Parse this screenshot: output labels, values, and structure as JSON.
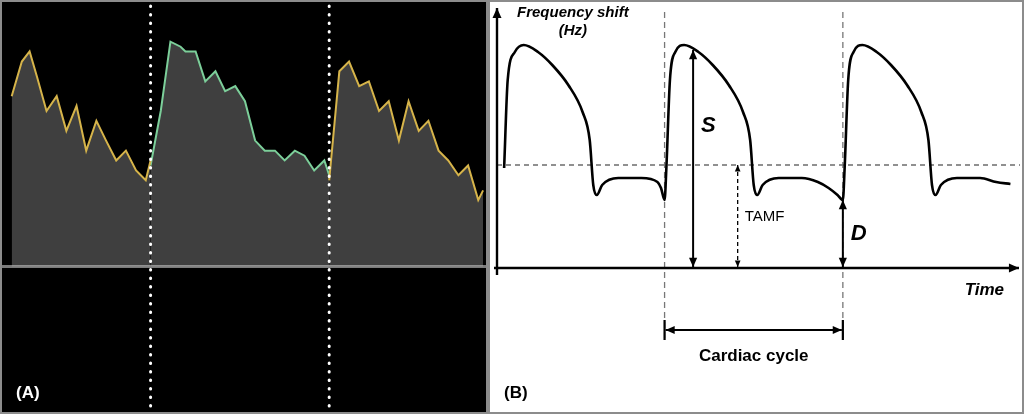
{
  "chart_data": [
    {
      "type": "line",
      "panel_label": "(A)",
      "x": [
        2,
        4.1,
        5.7,
        7.2,
        9.2,
        11.3,
        13.3,
        15.4,
        17.4,
        19.5,
        21.5,
        23.6,
        25.6,
        27.7,
        29.7,
        30.7,
        32.8,
        34.8,
        36.9,
        37.9,
        40,
        42,
        44.1,
        46.1,
        48.2,
        50.2,
        52.3,
        54.3,
        56.4,
        58.4,
        60.5,
        62.5,
        64.5,
        66.6,
        67.6,
        69.7,
        71.7,
        73.8,
        75.8,
        77.9,
        79.9,
        82,
        84,
        86.1,
        88.1,
        90.2,
        92.2,
        94.3,
        96.3,
        98.4,
        99.4
      ],
      "series": [
        {
          "color": "#d6b44a",
          "values": [
            64.4,
            77.5,
            81.3,
            71.9,
            58.8,
            64.4,
            51.3,
            60.7,
            43.8,
            55.1,
            47.6,
            40.1,
            43.8,
            36.3,
            32.6,
            40.1,
            null,
            null,
            null,
            null,
            null,
            null,
            null,
            null,
            null,
            null,
            null,
            null,
            null,
            null,
            null,
            null,
            null,
            null,
            32.6,
            73.8,
            77.5,
            68.2,
            70,
            58.8,
            62.5,
            47.6,
            62.5,
            51.3,
            55.1,
            43.8,
            40.1,
            34.5,
            38.2,
            25.1,
            28.8
          ]
        },
        {
          "color": "#7ccf9a",
          "values": [
            null,
            null,
            null,
            null,
            null,
            null,
            null,
            null,
            null,
            null,
            null,
            null,
            null,
            null,
            null,
            38.2,
            58.8,
            85,
            83.1,
            81.3,
            81.3,
            70,
            73.8,
            66.3,
            68.2,
            62.5,
            47.6,
            43.8,
            43.8,
            40.1,
            43.8,
            41.9,
            36.3,
            40.1,
            34.5,
            null,
            null,
            null,
            null,
            null,
            null,
            null,
            null,
            null,
            null,
            null,
            null,
            null,
            null,
            null,
            null
          ]
        }
      ],
      "xlim": [
        0,
        100
      ],
      "ylim": [
        -55,
        100
      ],
      "yticks": [
        0
      ],
      "grid": true,
      "tick_labels": false,
      "cycle_boundaries": [
        30.7,
        67.6
      ]
    },
    {
      "type": "line",
      "panel_label": "(B)",
      "x_label": "Time",
      "y_label": "Frequency shift (Hz)",
      "x": [
        0.04,
        0.06,
        0.1,
        0.15,
        0.23,
        0.31,
        0.4,
        0.48,
        0.52,
        0.54,
        0.56,
        0.59,
        0.68,
        0.81,
        0.9,
        0.92,
        0.94,
        0.95,
        0.97,
        1.0,
        1.05,
        1.13,
        1.21,
        1.3,
        1.38,
        1.42,
        1.44,
        1.46,
        1.49,
        1.58,
        1.71,
        1.8,
        1.86,
        1.91,
        1.94,
        1.95,
        1.97,
        2.0,
        2.05,
        2.13,
        2.21,
        2.3,
        2.38,
        2.42,
        2.44,
        2.46,
        2.49,
        2.58,
        2.71,
        2.8,
        2.88
      ],
      "values": [
        0.5,
        0.94,
        1.08,
        1.115,
        1.08,
        1.015,
        0.915,
        0.78,
        0.64,
        0.415,
        0.365,
        0.415,
        0.45,
        0.45,
        0.43,
        0.4,
        0.34,
        0.5,
        0.94,
        1.08,
        1.115,
        1.08,
        1.015,
        0.915,
        0.78,
        0.64,
        0.415,
        0.365,
        0.415,
        0.45,
        0.45,
        0.43,
        0.4,
        0.365,
        0.34,
        0.5,
        0.94,
        1.08,
        1.115,
        1.08,
        1.015,
        0.915,
        0.78,
        0.64,
        0.415,
        0.365,
        0.415,
        0.45,
        0.45,
        0.43,
        0.42
      ],
      "color": "#000000",
      "xlim": [
        0,
        2.9
      ],
      "ylim": [
        0,
        1.25
      ],
      "grid": false,
      "tick_labels": false,
      "cycle_boundaries": [
        0.94,
        1.94
      ],
      "cycle_label": "Cardiac cycle",
      "annotations": [
        {
          "text": "S",
          "x": 1.1,
          "y": 1.09,
          "line_style": "solid"
        },
        {
          "text": "TAMF",
          "x": 1.35,
          "y": 0.515,
          "line_style": "dashed"
        },
        {
          "text": "D",
          "x": 1.94,
          "y": 0.34,
          "line_style": "solid"
        }
      ]
    }
  ]
}
